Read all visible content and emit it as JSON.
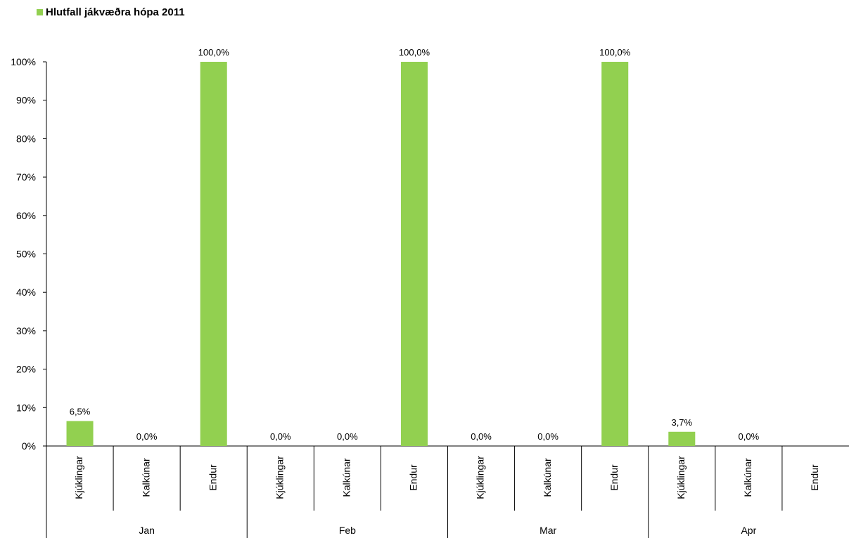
{
  "chart_data": {
    "type": "bar",
    "legend": {
      "label": "Hlutfall jákvæðra hópa 2011",
      "placement": "top-left"
    },
    "series": [
      {
        "name": "Hlutfall jákvæðra hópa 2011",
        "color": "#92D050",
        "values": [
          6.5,
          0.0,
          100.0,
          0.0,
          0.0,
          100.0,
          0.0,
          0.0,
          100.0,
          3.7,
          0.0,
          null
        ],
        "data_labels": [
          "6,5%",
          "0,0%",
          "100,0%",
          "0,0%",
          "0,0%",
          "100,0%",
          "0,0%",
          "0,0%",
          "100,0%",
          "3,7%",
          "0,0%",
          ""
        ]
      }
    ],
    "groups": [
      {
        "label": "Jan",
        "categories": [
          "Kjúklingar",
          "Kalkúnar",
          "Endur"
        ]
      },
      {
        "label": "Feb",
        "categories": [
          "Kjúklingar",
          "Kalkúnar",
          "Endur"
        ]
      },
      {
        "label": "Mar",
        "categories": [
          "Kjúklingar",
          "Kalkúnar",
          "Endur"
        ]
      },
      {
        "label": "Apr",
        "categories": [
          "Kjúklingar",
          "Kalkúnar",
          "Endur"
        ]
      }
    ],
    "y_ticks": [
      "0%",
      "10%",
      "20%",
      "30%",
      "40%",
      "50%",
      "60%",
      "70%",
      "80%",
      "90%",
      "100%"
    ],
    "ylim": [
      0,
      100
    ],
    "grid": false
  }
}
